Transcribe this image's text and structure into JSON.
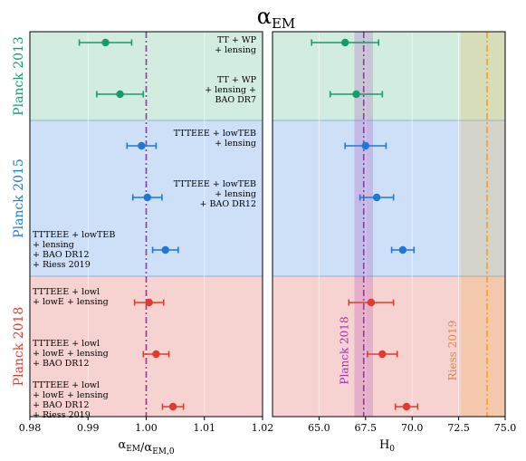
{
  "chart_data": {
    "type": "scatter",
    "title": "α_EM",
    "colors": {
      "planck2013": "#169c6b",
      "planck2015": "#1f78d8",
      "planck2018": "#e23b2e",
      "bg2013": "#d2ede0",
      "bg2015": "#cde0f7",
      "bg2018": "#f6d3d0",
      "planck2018_ref": "#a030b0",
      "riess2019_ref": "#f0a020"
    },
    "groups": [
      {
        "key": "planck2013",
        "label": "Planck 2013"
      },
      {
        "key": "planck2015",
        "label": "Planck 2015"
      },
      {
        "key": "planck2018",
        "label": "Planck 2018"
      }
    ],
    "rows": [
      {
        "group": "planck2013",
        "lines": [
          "TT + WP",
          "+ lensing"
        ],
        "align": "right",
        "alpha": 0.993,
        "alpha_err": 0.0045,
        "h0": 66.4,
        "h0_err": 1.8
      },
      {
        "group": "planck2013",
        "lines": [
          "TT + WP",
          "+ lensing +",
          "BAO DR7"
        ],
        "align": "right",
        "alpha": 0.9955,
        "alpha_err": 0.004,
        "h0": 67.0,
        "h0_err": 1.4
      },
      {
        "group": "planck2015",
        "lines": [
          "TTTEEE + lowTEB",
          "+ lensing"
        ],
        "align": "right",
        "alpha": 0.9992,
        "alpha_err": 0.0025,
        "h0": 67.5,
        "h0_err": 1.1
      },
      {
        "group": "planck2015",
        "lines": [
          "TTTEEE + lowTEB",
          "+ lensing",
          "+ BAO DR12"
        ],
        "align": "right",
        "alpha": 1.0002,
        "alpha_err": 0.0025,
        "h0": 68.1,
        "h0_err": 0.9
      },
      {
        "group": "planck2015",
        "lines": [
          "TTTEEE + lowTEB",
          "+ lensing",
          "+ BAO DR12",
          "+ Riess 2019"
        ],
        "align": "left",
        "alpha": 1.0033,
        "alpha_err": 0.0022,
        "h0": 69.5,
        "h0_err": 0.6
      },
      {
        "group": "planck2018",
        "lines": [
          "TTTEEE + lowl",
          "+ lowE + lensing"
        ],
        "align": "left",
        "alpha": 1.0005,
        "alpha_err": 0.0025,
        "h0": 67.8,
        "h0_err": 1.2
      },
      {
        "group": "planck2018",
        "lines": [
          "TTTEEE + lowl",
          "+ lowE + lensing",
          "+ BAO DR12"
        ],
        "align": "left",
        "alpha": 1.0017,
        "alpha_err": 0.0022,
        "h0": 68.4,
        "h0_err": 0.8
      },
      {
        "group": "planck2018",
        "lines": [
          "TTTEEE + lowl",
          "+ lowE + lensing",
          "+ BAO DR12",
          "+ Riess 2019"
        ],
        "align": "left",
        "alpha": 1.0046,
        "alpha_err": 0.0018,
        "h0": 69.7,
        "h0_err": 0.6
      }
    ],
    "left_axis": {
      "xlabel": "α_EM/α_EM,0",
      "xlim": [
        0.98,
        1.02
      ],
      "ticks": [
        0.98,
        0.99,
        1.0,
        1.01,
        1.02
      ],
      "tick_labels": [
        "0.98",
        "0.99",
        "1.00",
        "1.01",
        "1.02"
      ],
      "reference_line": 1.0
    },
    "right_axis": {
      "xlabel": "H_0",
      "xlim": [
        62.5,
        75.0
      ],
      "ticks": [
        65.0,
        67.5,
        70.0,
        72.5,
        75.0
      ],
      "tick_labels": [
        "65.0",
        "67.5",
        "70.0",
        "72.5",
        "75.0"
      ],
      "planck2018_ref": {
        "label": "Planck 2018",
        "value": 67.4,
        "band": [
          66.9,
          67.9
        ]
      },
      "riess2019_ref": {
        "label": "Riess 2019",
        "value": 74.03,
        "band": [
          72.6,
          75.0
        ]
      }
    },
    "grid": true
  }
}
